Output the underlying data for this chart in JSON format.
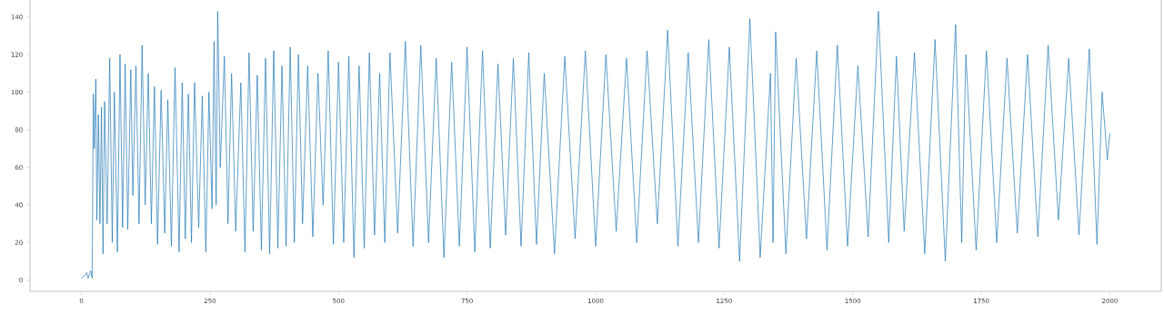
{
  "chart_data": {
    "type": "line",
    "xlim": [
      -100,
      2100
    ],
    "ylim": [
      -6,
      150
    ],
    "xticks": [
      0,
      250,
      500,
      750,
      1000,
      1250,
      1500,
      1750,
      2000
    ],
    "yticks": [
      0,
      20,
      40,
      60,
      80,
      100,
      120,
      140
    ],
    "grid": false,
    "marker": "none",
    "line_style": "solid",
    "series": [
      {
        "color": "#1f77b4",
        "x": [
          0,
          5,
          10,
          13,
          18,
          21,
          23,
          25,
          28,
          30,
          33,
          36,
          39,
          42,
          45,
          50,
          55,
          60,
          64,
          70,
          75,
          80,
          85,
          90,
          96,
          100,
          106,
          112,
          118,
          124,
          130,
          136,
          142,
          148,
          155,
          162,
          168,
          175,
          182,
          190,
          196,
          202,
          208,
          214,
          220,
          228,
          235,
          242,
          248,
          254,
          258,
          262,
          265,
          270,
          278,
          285,
          292,
          300,
          310,
          318,
          326,
          334,
          342,
          350,
          358,
          366,
          374,
          382,
          390,
          398,
          406,
          414,
          422,
          430,
          440,
          450,
          460,
          470,
          480,
          490,
          500,
          510,
          520,
          530,
          540,
          550,
          560,
          570,
          580,
          590,
          600,
          615,
          630,
          645,
          660,
          675,
          690,
          705,
          720,
          735,
          750,
          765,
          780,
          795,
          810,
          825,
          840,
          855,
          870,
          885,
          900,
          920,
          940,
          960,
          980,
          1000,
          1020,
          1040,
          1060,
          1080,
          1100,
          1120,
          1140,
          1160,
          1180,
          1200,
          1220,
          1240,
          1260,
          1280,
          1300,
          1320,
          1340,
          1345,
          1350,
          1370,
          1390,
          1410,
          1430,
          1450,
          1470,
          1490,
          1510,
          1530,
          1550,
          1570,
          1585,
          1600,
          1620,
          1640,
          1660,
          1680,
          1700,
          1712,
          1720,
          1740,
          1760,
          1780,
          1800,
          1820,
          1840,
          1860,
          1880,
          1900,
          1920,
          1940,
          1960,
          1975,
          1985,
          1995,
          2000
        ],
        "values": [
          1,
          2,
          4,
          1,
          5,
          1,
          99,
          70,
          107,
          32,
          88,
          30,
          92,
          14,
          95,
          30,
          118,
          20,
          100,
          15,
          120,
          28,
          115,
          27,
          112,
          45,
          114,
          30,
          125,
          40,
          110,
          30,
          103,
          19,
          101,
          25,
          96,
          18,
          113,
          15,
          105,
          22,
          99,
          20,
          105,
          28,
          98,
          15,
          100,
          38,
          127,
          40,
          143,
          60,
          119,
          30,
          110,
          26,
          105,
          15,
          121,
          26,
          109,
          16,
          118,
          14,
          122,
          17,
          114,
          18,
          124,
          20,
          120,
          30,
          114,
          23,
          110,
          40,
          122,
          19,
          116,
          20,
          119,
          12,
          114,
          17,
          121,
          24,
          110,
          20,
          121,
          25,
          127,
          18,
          125,
          20,
          118,
          12,
          116,
          18,
          124,
          15,
          122,
          17,
          115,
          24,
          118,
          18,
          121,
          19,
          110,
          14,
          119,
          22,
          122,
          18,
          120,
          26,
          118,
          20,
          122,
          30,
          133,
          18,
          121,
          20,
          128,
          17,
          124,
          10,
          139,
          12,
          110,
          20,
          132,
          14,
          118,
          22,
          122,
          16,
          125,
          18,
          114,
          23,
          143,
          20,
          119,
          26,
          121,
          14,
          128,
          10,
          136,
          20,
          120,
          16,
          122,
          20,
          118,
          25,
          120,
          23,
          125,
          32,
          118,
          24,
          123,
          19,
          100,
          64,
          78
        ]
      }
    ]
  }
}
